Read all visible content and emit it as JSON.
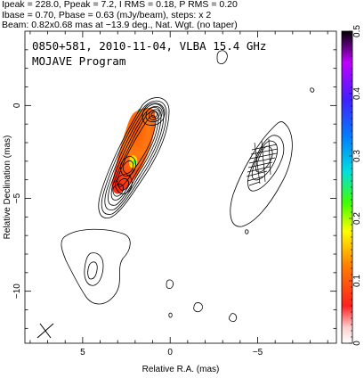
{
  "header": {
    "line1": "Ipeak = 228.0, Ppeak = 7.2, I RMS = 0.18, P RMS = 0.20",
    "line2": "Ibase = 0.70, Pbase = 0.63 (mJy/beam), steps: x 2",
    "line3": "Beam: 0.82x0.68 mas at −13.9 deg., Nat. Wgt. (no taper)"
  },
  "chart_data": {
    "type": "heatmap",
    "title_line1": "0850+581, 2010-11-04, VLBA 15.4 GHz",
    "title_line2": "MOJAVE Program",
    "xlabel": "Relative R.A. (mas)",
    "ylabel": "Relative Declination (mas)",
    "xlim": [
      8.3,
      -9.5
    ],
    "ylim": [
      -12.8,
      4.0
    ],
    "x_ticks": [
      "5",
      "0",
      "−5"
    ],
    "x_tick_values": [
      5,
      0,
      -5
    ],
    "y_ticks": [
      "0",
      "−5",
      "−10"
    ],
    "y_tick_values": [
      0,
      -5,
      -10
    ],
    "colorbar": {
      "range": [
        0,
        0.5
      ],
      "tick_labels": [
        "0",
        "0.1",
        "0.2",
        "0.3",
        "0.4",
        "0.5"
      ],
      "tick_values": [
        0,
        0.1,
        0.2,
        0.3,
        0.4,
        0.5
      ]
    },
    "contour_levels_mJy_per_beam": [
      0.7,
      1.4,
      2.8,
      5.6,
      11.2,
      22.4,
      44.8,
      89.6,
      179.2
    ],
    "peak_position_mas": [
      0,
      0
    ],
    "beam": {
      "major_mas": 0.82,
      "minor_mas": 0.68,
      "pa_deg": -13.9
    }
  }
}
